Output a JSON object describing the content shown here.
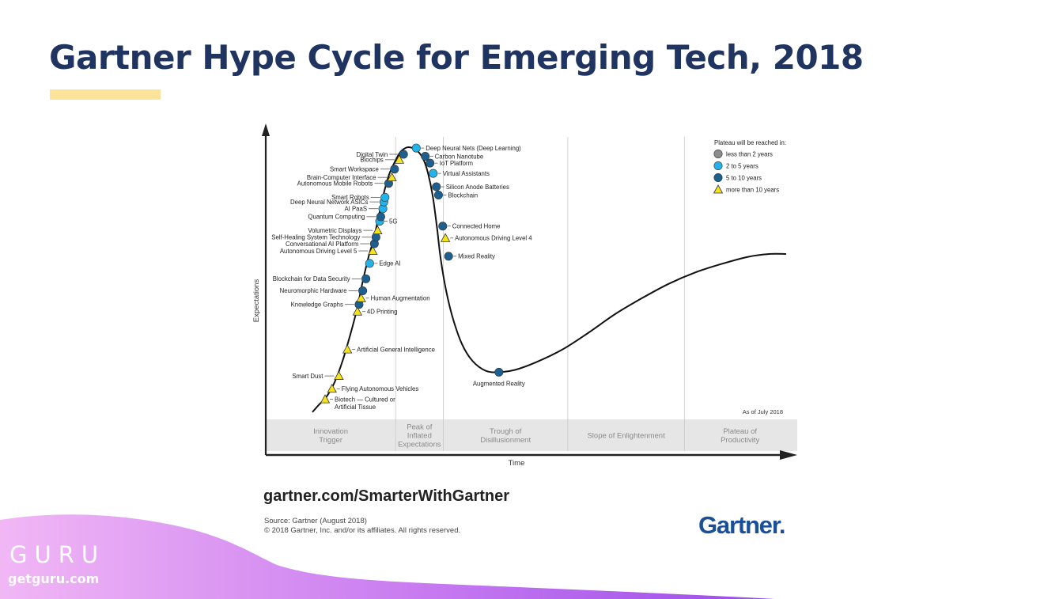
{
  "slide": {
    "title": "Gartner Hype Cycle for Emerging Tech, 2018",
    "site": "gartner.com/SmarterWithGartner",
    "source_line1": "Source: Gartner (August 2018)",
    "source_line2": "© 2018 Gartner, Inc. and/or its affiliates. All rights reserved.",
    "gartner_logo": "Gartner.",
    "brand_name": "GURU",
    "brand_url": "getguru.com",
    "colors": {
      "title": "#1f3460",
      "accent_bar": "#fbe39a",
      "wave_start": "#f1b7f5",
      "wave_end": "#9b4de8",
      "gartner_blue": "#1a4f9a"
    }
  },
  "chart_data": {
    "type": "scatter",
    "title": "",
    "xlabel": "Time",
    "ylabel": "Expectations",
    "as_of": "As of July 2018",
    "xlim": [
      0,
      100
    ],
    "ylim": [
      0,
      100
    ],
    "phases": [
      {
        "name": "Innovation Trigger",
        "lines": [
          "Innovation",
          "Trigger"
        ],
        "start": 0,
        "end": 24.5
      },
      {
        "name": "Peak of Inflated Expectations",
        "lines": [
          "Peak of",
          "Inflated",
          "Expectations"
        ],
        "start": 24.5,
        "end": 33.5
      },
      {
        "name": "Trough of Disillusionment",
        "lines": [
          "Trough of",
          "Disillusionment"
        ],
        "start": 33.5,
        "end": 57
      },
      {
        "name": "Slope of Enlightenment",
        "lines": [
          "Slope of Enlightenment"
        ],
        "start": 57,
        "end": 79
      },
      {
        "name": "Plateau of Productivity",
        "lines": [
          "Plateau of",
          "Productivity"
        ],
        "start": 79,
        "end": 100
      }
    ],
    "legend": {
      "title": "Plateau will be reached in:",
      "entries": [
        {
          "key": "lt2",
          "label": "less than 2 years",
          "marker": "circle",
          "color": "#8c8c8c"
        },
        {
          "key": "2to5",
          "label": "2 to 5 years",
          "marker": "circle",
          "color": "#21b3ea"
        },
        {
          "key": "5to10",
          "label": "5 to 10 years",
          "marker": "circle",
          "color": "#1d5f8e"
        },
        {
          "key": "gt10",
          "label": "more than 10 years",
          "marker": "triangle",
          "color": "#f5e21a"
        }
      ]
    },
    "curve": [
      [
        8.8,
        2
      ],
      [
        10,
        4.5
      ],
      [
        11.5,
        7.5
      ],
      [
        13,
        12.5
      ],
      [
        14.5,
        20
      ],
      [
        16,
        29.5
      ],
      [
        17.2,
        38
      ],
      [
        18.2,
        47
      ],
      [
        19.4,
        56.5
      ],
      [
        20.4,
        63
      ],
      [
        21.4,
        71.5
      ],
      [
        22.3,
        79
      ],
      [
        23.3,
        85.5
      ],
      [
        24.4,
        90
      ],
      [
        25.5,
        93.5
      ],
      [
        27,
        95
      ],
      [
        28.7,
        93.5
      ],
      [
        29.8,
        90.5
      ],
      [
        30.6,
        86
      ],
      [
        31.5,
        78
      ],
      [
        32.3,
        67
      ],
      [
        33,
        56
      ],
      [
        34,
        45
      ],
      [
        35.3,
        35
      ],
      [
        37,
        26
      ],
      [
        39,
        20
      ],
      [
        41.5,
        16.5
      ],
      [
        44,
        16
      ],
      [
        47,
        16.8
      ],
      [
        51,
        19.5
      ],
      [
        56,
        24
      ],
      [
        61,
        30
      ],
      [
        66,
        36.5
      ],
      [
        71,
        42
      ],
      [
        76,
        47
      ],
      [
        81,
        51
      ],
      [
        86,
        54
      ],
      [
        91,
        56.5
      ],
      [
        95,
        57.5
      ],
      [
        98.2,
        57.5
      ]
    ],
    "points": [
      {
        "label": "Biotech — Cultured or Artificial Tissue",
        "x": 11.2,
        "y": 6.5,
        "cat": "gt10",
        "side": "right"
      },
      {
        "label": "Flying Autonomous Vehicles",
        "x": 12.5,
        "y": 10.2,
        "cat": "gt10",
        "side": "right"
      },
      {
        "label": "Smart Dust",
        "x": 13.8,
        "y": 14.7,
        "cat": "gt10",
        "side": "left"
      },
      {
        "label": "Artificial General Intelligence",
        "x": 15.4,
        "y": 24,
        "cat": "gt10",
        "side": "right"
      },
      {
        "label": "4D Printing",
        "x": 17.3,
        "y": 37.3,
        "cat": "gt10",
        "side": "right"
      },
      {
        "label": "Knowledge Graphs",
        "x": 17.6,
        "y": 39.8,
        "cat": "5to10",
        "side": "left"
      },
      {
        "label": "Human Augmentation",
        "x": 18,
        "y": 42,
        "cat": "gt10",
        "side": "right"
      },
      {
        "label": "Neuromorphic Hardware",
        "x": 18.3,
        "y": 44.6,
        "cat": "5to10",
        "side": "left"
      },
      {
        "label": "Blockchain for Data Security",
        "x": 18.9,
        "y": 48.8,
        "cat": "5to10",
        "side": "left"
      },
      {
        "label": "Edge AI",
        "x": 19.6,
        "y": 54.2,
        "cat": "2to5",
        "side": "right"
      },
      {
        "label": "Autonomous Driving Level 5",
        "x": 20.2,
        "y": 58.6,
        "cat": "gt10",
        "side": "left"
      },
      {
        "label": "Conversational AI Platform",
        "x": 20.5,
        "y": 61.1,
        "cat": "5to10",
        "side": "left"
      },
      {
        "label": "Self-Healing System Technology",
        "x": 20.8,
        "y": 63.4,
        "cat": "5to10",
        "side": "left"
      },
      {
        "label": "Volumetric Displays",
        "x": 21.1,
        "y": 65.8,
        "cat": "gt10",
        "side": "left"
      },
      {
        "label": "5G",
        "x": 21.5,
        "y": 69,
        "cat": "2to5",
        "side": "right"
      },
      {
        "label": "Quantum Computing",
        "x": 21.7,
        "y": 70.6,
        "cat": "5to10",
        "side": "left"
      },
      {
        "label": "AI PaaS",
        "x": 22.1,
        "y": 73.4,
        "cat": "2to5",
        "side": "left"
      },
      {
        "label": "Deep Neural Network ASICs",
        "x": 22.3,
        "y": 75.8,
        "cat": "2to5",
        "side": "left"
      },
      {
        "label": "Smart Robots",
        "x": 22.5,
        "y": 77.4,
        "cat": "2to5",
        "side": "left"
      },
      {
        "label": "Autonomous Mobile Robots",
        "x": 23.2,
        "y": 82.3,
        "cat": "5to10",
        "side": "left"
      },
      {
        "label": "Brain-Computer Interface",
        "x": 23.8,
        "y": 84.4,
        "cat": "gt10",
        "side": "left"
      },
      {
        "label": "Smart Workspace",
        "x": 24.3,
        "y": 87.3,
        "cat": "5to10",
        "side": "left"
      },
      {
        "label": "Biochips",
        "x": 25.2,
        "y": 90.6,
        "cat": "gt10",
        "side": "left"
      },
      {
        "label": "Digital Twin",
        "x": 26,
        "y": 92.5,
        "cat": "5to10",
        "side": "left"
      },
      {
        "label": "Deep Neural Nets (Deep Learning)",
        "x": 28.4,
        "y": 94.7,
        "cat": "2to5",
        "side": "right"
      },
      {
        "label": "Carbon Nanotube",
        "x": 30.1,
        "y": 91.8,
        "cat": "5to10",
        "side": "right"
      },
      {
        "label": "IoT Platform",
        "x": 31,
        "y": 89.4,
        "cat": "5to10",
        "side": "right"
      },
      {
        "label": "Virtual Assistants",
        "x": 31.6,
        "y": 85.8,
        "cat": "2to5",
        "side": "right"
      },
      {
        "label": "Silicon Anode Batteries",
        "x": 32.2,
        "y": 81.1,
        "cat": "5to10",
        "side": "right"
      },
      {
        "label": "Blockchain",
        "x": 32.6,
        "y": 78.2,
        "cat": "5to10",
        "side": "right"
      },
      {
        "label": "Connected Home",
        "x": 33.4,
        "y": 67.3,
        "cat": "5to10",
        "side": "right"
      },
      {
        "label": "Autonomous Driving Level 4",
        "x": 33.9,
        "y": 63.1,
        "cat": "gt10",
        "side": "right"
      },
      {
        "label": "Mixed Reality",
        "x": 34.5,
        "y": 56.7,
        "cat": "5to10",
        "side": "right"
      },
      {
        "label": "Augmented Reality",
        "x": 44,
        "y": 16,
        "cat": "5to10",
        "side": "below"
      }
    ]
  }
}
